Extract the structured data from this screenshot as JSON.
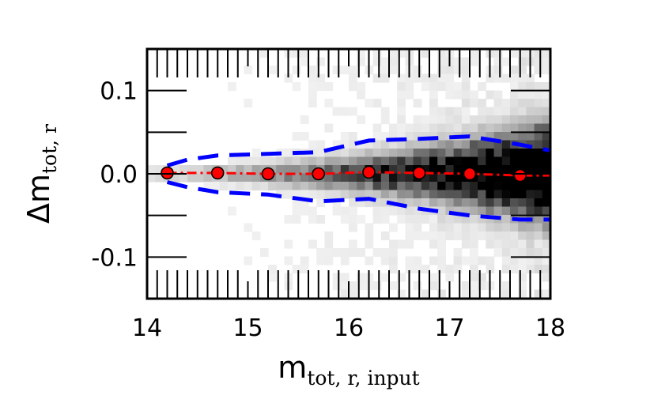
{
  "chart_data": {
    "type": "scatter",
    "title": "",
    "xlabel": {
      "main": "m",
      "subscript": "tot, r, input"
    },
    "ylabel": {
      "main": "Δm",
      "subscript": "tot, r"
    },
    "xlim": [
      14,
      18
    ],
    "ylim": [
      -0.15,
      0.15
    ],
    "xticks": [
      {
        "value": 14,
        "label": "14"
      },
      {
        "value": 15,
        "label": "15"
      },
      {
        "value": 16,
        "label": "16"
      },
      {
        "value": 17,
        "label": "17"
      },
      {
        "value": 18,
        "label": "18"
      }
    ],
    "yticks": [
      {
        "value": 0.1,
        "label": "0.1"
      },
      {
        "value": 0.0,
        "label": "0.0"
      },
      {
        "value": -0.1,
        "label": "-0.1"
      }
    ],
    "grid": false,
    "background": "2D density histogram (greyscale), density increasing toward fainter magnitudes",
    "colors": {
      "points": "#ff0000",
      "median_line": "#ff0000",
      "envelope": "#0000ff",
      "density": "#000000"
    },
    "series": [
      {
        "style": "points",
        "x": [
          14.2,
          14.7,
          15.2,
          15.7,
          16.2,
          16.7,
          17.2,
          17.7
        ],
        "y": [
          0.001,
          0.001,
          0.0,
          0.0,
          0.002,
          0.001,
          0.0,
          -0.002
        ]
      },
      {
        "style": "dash-dot line",
        "x": [
          14.2,
          14.7,
          15.2,
          15.7,
          16.2,
          16.7,
          17.2,
          17.7,
          18.0
        ],
        "y": [
          0.001,
          0.001,
          0.0,
          0.0,
          0.002,
          0.001,
          0.0,
          -0.002,
          -0.002
        ]
      },
      {
        "style": "dashed line",
        "x": [
          14.2,
          14.4,
          14.7,
          15.2,
          15.7,
          16.2,
          16.7,
          17.2,
          17.7,
          18.0
        ],
        "y": [
          0.01,
          0.017,
          0.022,
          0.024,
          0.026,
          0.04,
          0.042,
          0.045,
          0.035,
          0.028
        ]
      },
      {
        "style": "dashed line",
        "x": [
          14.2,
          14.4,
          14.7,
          15.2,
          15.7,
          16.2,
          16.7,
          17.2,
          17.7,
          18.0
        ],
        "y": [
          -0.01,
          -0.016,
          -0.022,
          -0.025,
          -0.033,
          -0.03,
          -0.042,
          -0.05,
          -0.055,
          -0.055
        ]
      }
    ]
  }
}
